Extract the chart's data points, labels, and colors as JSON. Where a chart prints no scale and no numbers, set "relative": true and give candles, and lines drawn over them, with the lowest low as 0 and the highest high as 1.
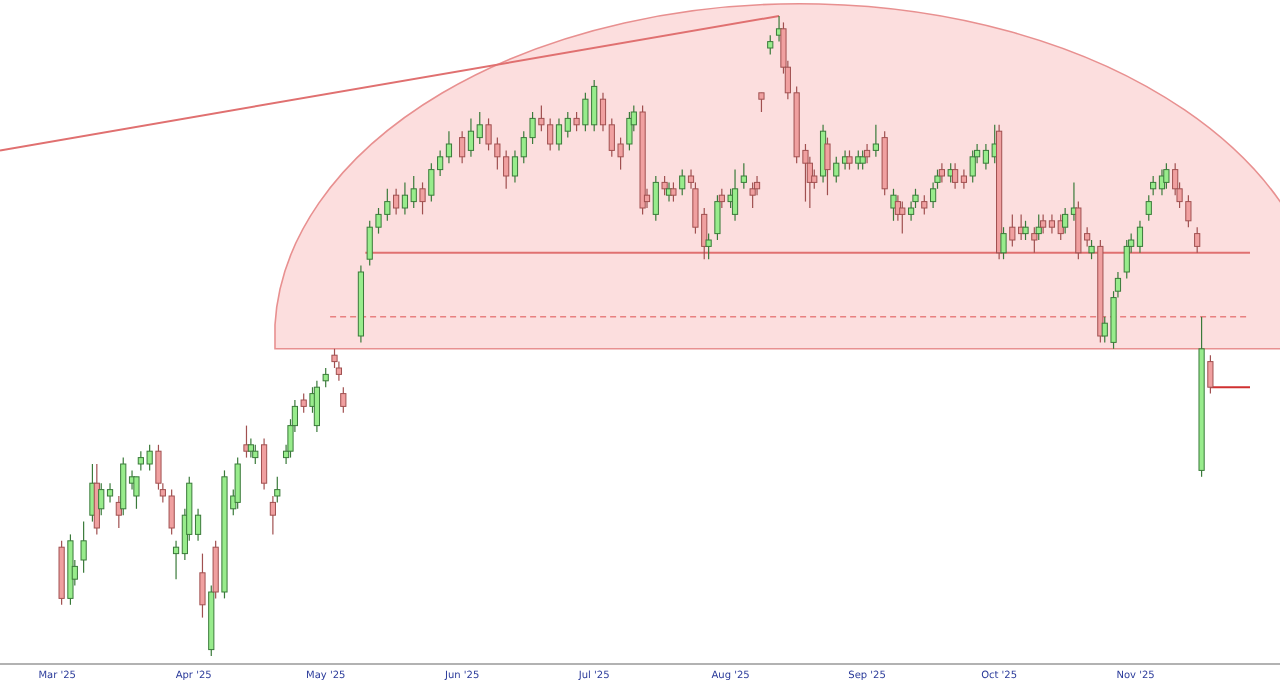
{
  "chart_data": {
    "type": "candlestick",
    "relative": true,
    "x": [
      "2025-03-02",
      "2025-03-04",
      "2025-03-05",
      "2025-03-07",
      "2025-03-09",
      "2025-03-10",
      "2025-03-11",
      "2025-03-13",
      "2025-03-15",
      "2025-03-16",
      "2025-03-18",
      "2025-03-19",
      "2025-03-20",
      "2025-03-22",
      "2025-03-24",
      "2025-03-25",
      "2025-03-27",
      "2025-03-28",
      "2025-03-30",
      "2025-03-31",
      "2025-04-02",
      "2025-04-03",
      "2025-04-05",
      "2025-04-06",
      "2025-04-08",
      "2025-04-10",
      "2025-04-11",
      "2025-04-13",
      "2025-04-14",
      "2025-04-15",
      "2025-04-17",
      "2025-04-19",
      "2025-04-20",
      "2025-04-22",
      "2025-04-23",
      "2025-04-24",
      "2025-04-26",
      "2025-04-28",
      "2025-04-29",
      "2025-05-01",
      "2025-05-03",
      "2025-05-04",
      "2025-05-05",
      "2025-05-09",
      "2025-05-11",
      "2025-05-13",
      "2025-05-15",
      "2025-05-17",
      "2025-05-19",
      "2025-05-21",
      "2025-05-23",
      "2025-05-25",
      "2025-05-27",
      "2025-05-29",
      "2025-06-01",
      "2025-06-03",
      "2025-06-05",
      "2025-06-07",
      "2025-06-09",
      "2025-06-11",
      "2025-06-13",
      "2025-06-15",
      "2025-06-17",
      "2025-06-19",
      "2025-06-21",
      "2025-06-23",
      "2025-06-25",
      "2025-06-27",
      "2025-06-29",
      "2025-07-01",
      "2025-07-03",
      "2025-07-05",
      "2025-07-07",
      "2025-07-09",
      "2025-07-10",
      "2025-07-12",
      "2025-07-13",
      "2025-07-15",
      "2025-07-17",
      "2025-07-18",
      "2025-07-19",
      "2025-07-21",
      "2025-07-23",
      "2025-07-24",
      "2025-07-26",
      "2025-07-27",
      "2025-07-29",
      "2025-07-30",
      "2025-08-01",
      "2025-08-02",
      "2025-08-04",
      "2025-08-06",
      "2025-08-07",
      "2025-08-08",
      "2025-08-10",
      "2025-08-12",
      "2025-08-13",
      "2025-08-14",
      "2025-08-16",
      "2025-08-18",
      "2025-08-19",
      "2025-08-20",
      "2025-08-22",
      "2025-08-23",
      "2025-08-25",
      "2025-08-27",
      "2025-08-28",
      "2025-08-30",
      "2025-08-31",
      "2025-09-01",
      "2025-09-03",
      "2025-09-05",
      "2025-09-07",
      "2025-09-08",
      "2025-09-09",
      "2025-09-11",
      "2025-09-12",
      "2025-09-14",
      "2025-09-16",
      "2025-09-17",
      "2025-09-18",
      "2025-09-20",
      "2025-09-21",
      "2025-09-23",
      "2025-09-25",
      "2025-09-26",
      "2025-09-28",
      "2025-09-30",
      "2025-10-01",
      "2025-10-02",
      "2025-10-04",
      "2025-10-06",
      "2025-10-07",
      "2025-10-09",
      "2025-10-10",
      "2025-10-11",
      "2025-10-13",
      "2025-10-15",
      "2025-10-16",
      "2025-10-18",
      "2025-10-19",
      "2025-10-21",
      "2025-10-22",
      "2025-10-24",
      "2025-10-25",
      "2025-10-27",
      "2025-10-28",
      "2025-10-30",
      "2025-10-31",
      "2025-11-02",
      "2025-11-04",
      "2025-11-05",
      "2025-11-07",
      "2025-11-08",
      "2025-11-10",
      "2025-11-11",
      "2025-11-13",
      "2025-11-15",
      "2025-11-16",
      "2025-11-18"
    ],
    "ohlc": [
      [
        0.17,
        0.18,
        0.08,
        0.09
      ],
      [
        0.09,
        0.19,
        0.08,
        0.18
      ],
      [
        0.12,
        0.15,
        0.11,
        0.14
      ],
      [
        0.15,
        0.21,
        0.13,
        0.18
      ],
      [
        0.22,
        0.3,
        0.21,
        0.27
      ],
      [
        0.27,
        0.3,
        0.19,
        0.2
      ],
      [
        0.23,
        0.27,
        0.22,
        0.26
      ],
      [
        0.25,
        0.27,
        0.24,
        0.26
      ],
      [
        0.24,
        0.25,
        0.2,
        0.22
      ],
      [
        0.23,
        0.31,
        0.22,
        0.3
      ],
      [
        0.27,
        0.29,
        0.26,
        0.28
      ],
      [
        0.25,
        0.28,
        0.23,
        0.28
      ],
      [
        0.3,
        0.32,
        0.29,
        0.31
      ],
      [
        0.3,
        0.33,
        0.29,
        0.32
      ],
      [
        0.32,
        0.33,
        0.26,
        0.27
      ],
      [
        0.26,
        0.27,
        0.24,
        0.25
      ],
      [
        0.25,
        0.26,
        0.19,
        0.2
      ],
      [
        0.16,
        0.18,
        0.12,
        0.17
      ],
      [
        0.16,
        0.23,
        0.15,
        0.22
      ],
      [
        0.19,
        0.28,
        0.18,
        0.27
      ],
      [
        0.19,
        0.23,
        0.18,
        0.22
      ],
      [
        0.13,
        0.16,
        0.06,
        0.08
      ],
      [
        0.01,
        0.11,
        0.0,
        0.1
      ],
      [
        0.17,
        0.18,
        0.09,
        0.1
      ],
      [
        0.1,
        0.29,
        0.09,
        0.28
      ],
      [
        0.23,
        0.26,
        0.22,
        0.25
      ],
      [
        0.24,
        0.31,
        0.23,
        0.3
      ],
      [
        0.33,
        0.36,
        0.31,
        0.32
      ],
      [
        0.32,
        0.34,
        0.31,
        0.33
      ],
      [
        0.31,
        0.33,
        0.3,
        0.32
      ],
      [
        0.33,
        0.34,
        0.26,
        0.27
      ],
      [
        0.24,
        0.25,
        0.19,
        0.22
      ],
      [
        0.25,
        0.28,
        0.24,
        0.26
      ],
      [
        0.31,
        0.33,
        0.3,
        0.32
      ],
      [
        0.32,
        0.37,
        0.31,
        0.36
      ],
      [
        0.36,
        0.4,
        0.35,
        0.39
      ],
      [
        0.4,
        0.41,
        0.38,
        0.39
      ],
      [
        0.39,
        0.42,
        0.38,
        0.41
      ],
      [
        0.36,
        0.43,
        0.35,
        0.42
      ],
      [
        0.43,
        0.45,
        0.42,
        0.44
      ],
      [
        0.47,
        0.48,
        0.45,
        0.46
      ],
      [
        0.45,
        0.46,
        0.43,
        0.44
      ],
      [
        0.41,
        0.42,
        0.38,
        0.39
      ],
      [
        0.5,
        0.61,
        0.49,
        0.6
      ],
      [
        0.62,
        0.68,
        0.61,
        0.67
      ],
      [
        0.67,
        0.7,
        0.66,
        0.69
      ],
      [
        0.69,
        0.73,
        0.68,
        0.71
      ],
      [
        0.72,
        0.73,
        0.69,
        0.7
      ],
      [
        0.7,
        0.74,
        0.69,
        0.72
      ],
      [
        0.71,
        0.75,
        0.7,
        0.73
      ],
      [
        0.73,
        0.74,
        0.69,
        0.71
      ],
      [
        0.72,
        0.77,
        0.71,
        0.76
      ],
      [
        0.76,
        0.79,
        0.75,
        0.78
      ],
      [
        0.78,
        0.82,
        0.77,
        0.8
      ],
      [
        0.81,
        0.82,
        0.77,
        0.78
      ],
      [
        0.79,
        0.84,
        0.78,
        0.82
      ],
      [
        0.81,
        0.85,
        0.8,
        0.83
      ],
      [
        0.83,
        0.84,
        0.79,
        0.8
      ],
      [
        0.8,
        0.81,
        0.76,
        0.78
      ],
      [
        0.78,
        0.79,
        0.73,
        0.75
      ],
      [
        0.75,
        0.79,
        0.74,
        0.78
      ],
      [
        0.78,
        0.82,
        0.77,
        0.81
      ],
      [
        0.81,
        0.85,
        0.8,
        0.84
      ],
      [
        0.84,
        0.86,
        0.82,
        0.83
      ],
      [
        0.83,
        0.84,
        0.79,
        0.8
      ],
      [
        0.8,
        0.84,
        0.79,
        0.83
      ],
      [
        0.82,
        0.85,
        0.81,
        0.84
      ],
      [
        0.84,
        0.85,
        0.82,
        0.83
      ],
      [
        0.83,
        0.88,
        0.82,
        0.87
      ],
      [
        0.83,
        0.9,
        0.82,
        0.89
      ],
      [
        0.87,
        0.88,
        0.82,
        0.83
      ],
      [
        0.83,
        0.84,
        0.78,
        0.79
      ],
      [
        0.8,
        0.81,
        0.76,
        0.78
      ],
      [
        0.8,
        0.85,
        0.79,
        0.84
      ],
      [
        0.83,
        0.86,
        0.82,
        0.85
      ],
      [
        0.85,
        0.86,
        0.69,
        0.7
      ],
      [
        0.72,
        0.73,
        0.7,
        0.71
      ],
      [
        0.69,
        0.75,
        0.68,
        0.74
      ],
      [
        0.74,
        0.75,
        0.72,
        0.73
      ],
      [
        0.72,
        0.74,
        0.71,
        0.73
      ],
      [
        0.73,
        0.74,
        0.71,
        0.72
      ],
      [
        0.73,
        0.76,
        0.72,
        0.75
      ],
      [
        0.75,
        0.76,
        0.73,
        0.74
      ],
      [
        0.73,
        0.74,
        0.66,
        0.67
      ],
      [
        0.69,
        0.7,
        0.62,
        0.64
      ],
      [
        0.64,
        0.66,
        0.62,
        0.65
      ],
      [
        0.66,
        0.72,
        0.65,
        0.71
      ],
      [
        0.72,
        0.73,
        0.7,
        0.71
      ],
      [
        0.71,
        0.73,
        0.7,
        0.72
      ],
      [
        0.69,
        0.76,
        0.68,
        0.73
      ],
      [
        0.74,
        0.77,
        0.73,
        0.75
      ],
      [
        0.73,
        0.74,
        0.7,
        0.72
      ],
      [
        0.74,
        0.75,
        0.72,
        0.73
      ],
      [
        0.88,
        0.88,
        0.85,
        0.87
      ],
      [
        0.95,
        0.97,
        0.94,
        0.96
      ],
      [
        0.97,
        1.0,
        0.96,
        0.98
      ],
      [
        0.98,
        0.99,
        0.91,
        0.92
      ],
      [
        0.92,
        0.93,
        0.87,
        0.88
      ],
      [
        0.88,
        0.89,
        0.77,
        0.78
      ],
      [
        0.79,
        0.8,
        0.71,
        0.77
      ],
      [
        0.77,
        0.78,
        0.7,
        0.74
      ],
      [
        0.75,
        0.76,
        0.73,
        0.74
      ],
      [
        0.75,
        0.83,
        0.74,
        0.82
      ],
      [
        0.8,
        0.81,
        0.72,
        0.76
      ],
      [
        0.75,
        0.78,
        0.74,
        0.77
      ],
      [
        0.77,
        0.79,
        0.76,
        0.78
      ],
      [
        0.78,
        0.79,
        0.76,
        0.77
      ],
      [
        0.77,
        0.79,
        0.76,
        0.78
      ],
      [
        0.77,
        0.79,
        0.76,
        0.78
      ],
      [
        0.79,
        0.8,
        0.77,
        0.78
      ],
      [
        0.79,
        0.83,
        0.78,
        0.8
      ],
      [
        0.81,
        0.82,
        0.72,
        0.73
      ],
      [
        0.7,
        0.73,
        0.68,
        0.72
      ],
      [
        0.71,
        0.72,
        0.68,
        0.69
      ],
      [
        0.7,
        0.71,
        0.66,
        0.69
      ],
      [
        0.69,
        0.71,
        0.68,
        0.7
      ],
      [
        0.71,
        0.73,
        0.7,
        0.72
      ],
      [
        0.71,
        0.72,
        0.69,
        0.7
      ],
      [
        0.71,
        0.74,
        0.7,
        0.73
      ],
      [
        0.74,
        0.76,
        0.73,
        0.75
      ],
      [
        0.76,
        0.77,
        0.74,
        0.75
      ],
      [
        0.75,
        0.77,
        0.74,
        0.76
      ],
      [
        0.76,
        0.77,
        0.73,
        0.74
      ],
      [
        0.75,
        0.76,
        0.73,
        0.74
      ],
      [
        0.75,
        0.79,
        0.74,
        0.78
      ],
      [
        0.78,
        0.8,
        0.77,
        0.79
      ],
      [
        0.77,
        0.8,
        0.76,
        0.79
      ],
      [
        0.78,
        0.83,
        0.77,
        0.8
      ],
      [
        0.82,
        0.83,
        0.62,
        0.63
      ],
      [
        0.63,
        0.67,
        0.62,
        0.66
      ],
      [
        0.67,
        0.69,
        0.64,
        0.65
      ],
      [
        0.67,
        0.69,
        0.65,
        0.66
      ],
      [
        0.66,
        0.68,
        0.65,
        0.67
      ],
      [
        0.66,
        0.67,
        0.63,
        0.65
      ],
      [
        0.66,
        0.69,
        0.65,
        0.67
      ],
      [
        0.68,
        0.69,
        0.66,
        0.67
      ],
      [
        0.68,
        0.69,
        0.66,
        0.67
      ],
      [
        0.68,
        0.69,
        0.65,
        0.66
      ],
      [
        0.67,
        0.7,
        0.66,
        0.69
      ],
      [
        0.69,
        0.74,
        0.68,
        0.7
      ],
      [
        0.7,
        0.71,
        0.62,
        0.63
      ],
      [
        0.66,
        0.67,
        0.64,
        0.65
      ],
      [
        0.63,
        0.65,
        0.62,
        0.64
      ],
      [
        0.64,
        0.65,
        0.49,
        0.5
      ],
      [
        0.5,
        0.53,
        0.49,
        0.52
      ],
      [
        0.49,
        0.57,
        0.48,
        0.56
      ],
      [
        0.57,
        0.6,
        0.56,
        0.59
      ],
      [
        0.6,
        0.65,
        0.59,
        0.64
      ],
      [
        0.64,
        0.66,
        0.63,
        0.65
      ],
      [
        0.64,
        0.68,
        0.63,
        0.67
      ],
      [
        0.69,
        0.72,
        0.68,
        0.71
      ],
      [
        0.73,
        0.75,
        0.72,
        0.74
      ],
      [
        0.73,
        0.76,
        0.72,
        0.75
      ],
      [
        0.74,
        0.77,
        0.73,
        0.76
      ],
      [
        0.76,
        0.77,
        0.72,
        0.73
      ],
      [
        0.73,
        0.74,
        0.7,
        0.71
      ],
      [
        0.71,
        0.72,
        0.67,
        0.68
      ],
      [
        0.66,
        0.67,
        0.63,
        0.64
      ],
      [
        0.29,
        0.53,
        0.28,
        0.48
      ],
      [
        0.46,
        0.47,
        0.41,
        0.42
      ]
    ],
    "xlim": [
      "2025-02-16",
      "2025-11-27"
    ],
    "xticks": [
      {
        "value": "2025-03-01",
        "label": "Mar '25"
      },
      {
        "value": "2025-04-01",
        "label": "Apr '25"
      },
      {
        "value": "2025-05-01",
        "label": "May '25"
      },
      {
        "value": "2025-06-01",
        "label": "Jun '25"
      },
      {
        "value": "2025-07-01",
        "label": "Jul '25"
      },
      {
        "value": "2025-08-01",
        "label": "Aug '25"
      },
      {
        "value": "2025-09-01",
        "label": "Sep '25"
      },
      {
        "value": "2025-10-01",
        "label": "Oct '25"
      },
      {
        "value": "2025-11-01",
        "label": "Nov '25"
      }
    ],
    "series": [
      {
        "type": "line",
        "color": "#e07070",
        "x": [
          "2025-02-16",
          "2025-08-12"
        ],
        "values": [
          0.79,
          1.0
        ]
      },
      {
        "type": "line",
        "color": "#e07070",
        "x": [
          "2025-05-10",
          "2025-11-27"
        ],
        "values": [
          0.63,
          0.63
        ]
      },
      {
        "type": "line",
        "color": "#e88080",
        "line_style": "dashed",
        "x": [
          "2025-05-02",
          "2025-11-27"
        ],
        "values": [
          0.53,
          0.53
        ]
      },
      {
        "type": "line",
        "color": "#d03030",
        "x": [
          "2025-11-18",
          "2025-11-27"
        ],
        "values": [
          0.42,
          0.42
        ]
      }
    ]
  }
}
